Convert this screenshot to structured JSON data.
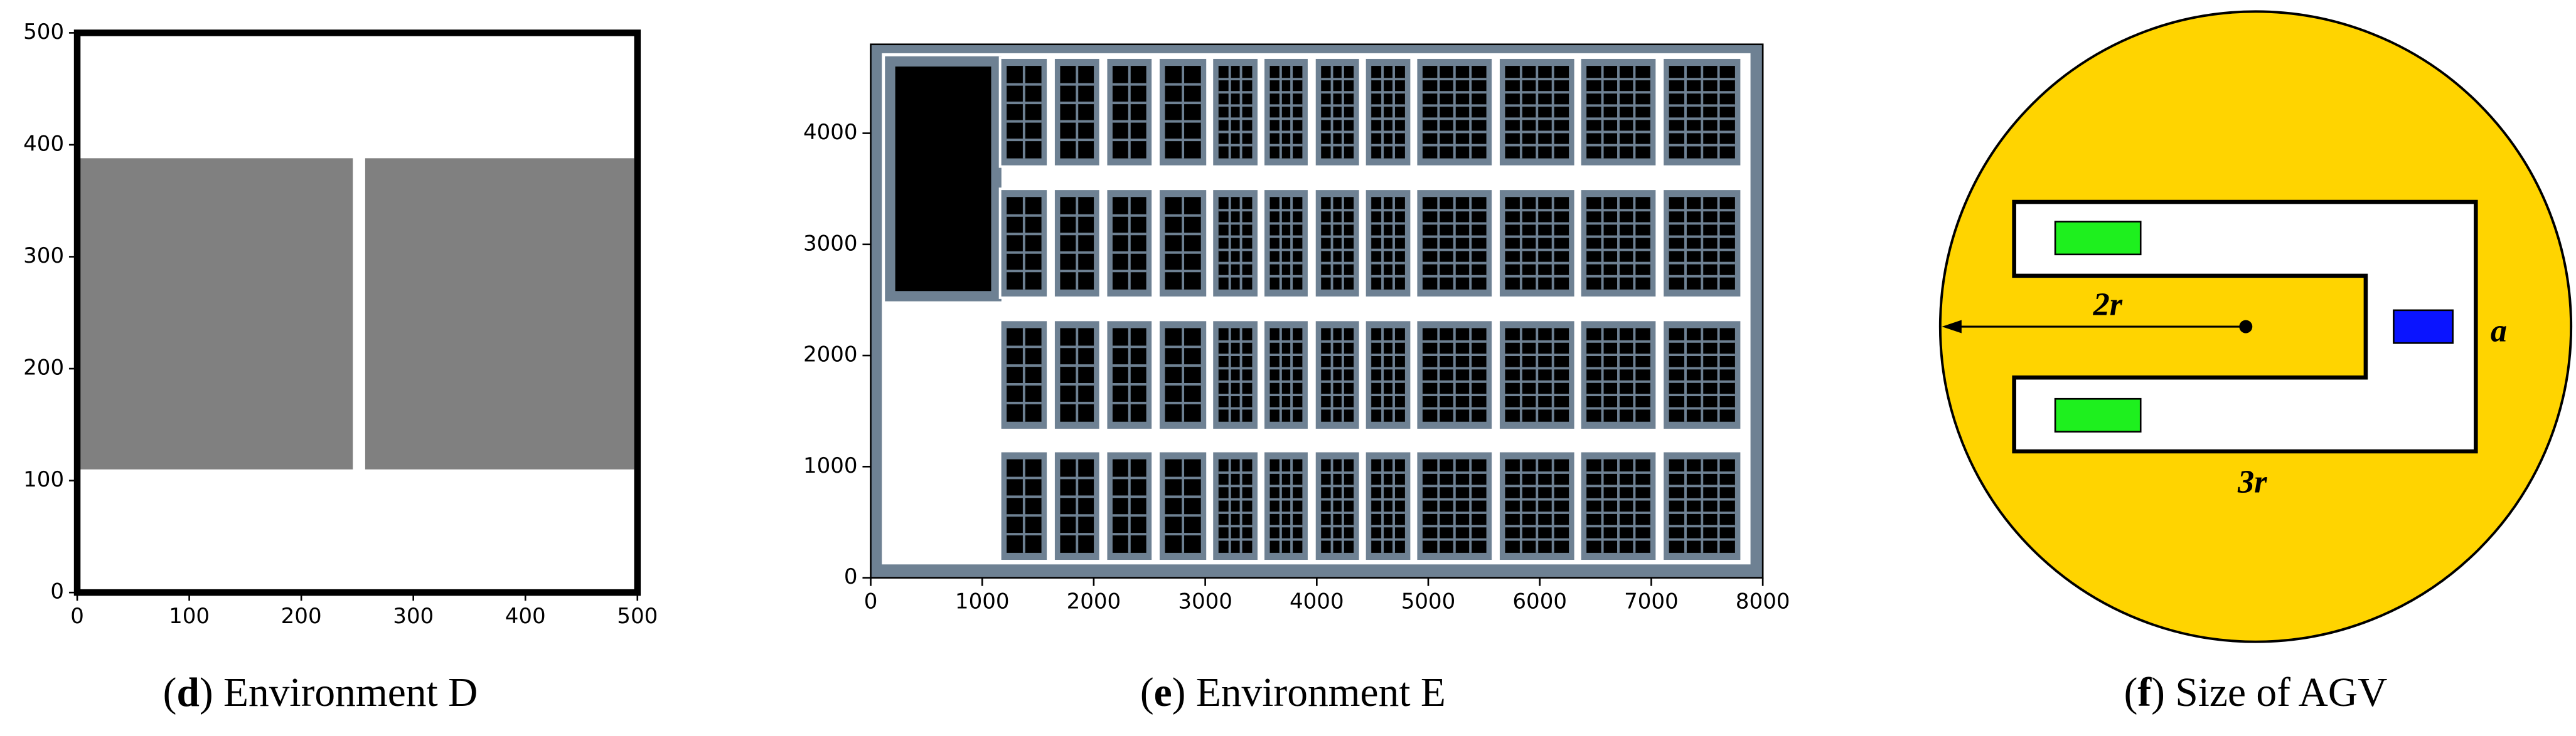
{
  "chart_data": [
    {
      "type": "map",
      "caption": [
        {
          "text": "(",
          "bold": false
        },
        {
          "text": "d",
          "bold": true
        },
        {
          "text": ") Environment D",
          "bold": false
        }
      ],
      "xlim": [
        0,
        500
      ],
      "ylim": [
        0,
        500
      ],
      "xticks": [
        0,
        100,
        200,
        300,
        400,
        500
      ],
      "yticks": [
        0,
        100,
        200,
        300,
        400,
        500
      ],
      "frame_bold": true,
      "obstacle_color": "#808080",
      "obstacles": [
        {
          "x": [
            0,
            246
          ],
          "y": [
            110,
            388
          ]
        },
        {
          "x": [
            257,
            497
          ],
          "y": [
            110,
            388
          ]
        }
      ]
    },
    {
      "type": "map",
      "caption": [
        {
          "text": "(",
          "bold": false
        },
        {
          "text": "e",
          "bold": true
        },
        {
          "text": ") Environment E",
          "bold": false
        }
      ],
      "xlim": [
        0,
        8000
      ],
      "ylim": [
        0,
        4800
      ],
      "xticks": [
        0,
        1000,
        2000,
        3000,
        4000,
        5000,
        6000,
        7000,
        8000
      ],
      "yticks": [
        0,
        1000,
        2000,
        3000,
        4000
      ],
      "frame_bold": false,
      "frame_color": "#6e8193",
      "obstacle_color": "#000000",
      "shelf_color": "#6e8193",
      "free_space": {
        "x": [
          100,
          7890
        ],
        "y": [
          120,
          4720
        ]
      },
      "obstacles": [
        {
          "x": [
            220,
            1080
          ],
          "y": [
            2580,
            4600
          ]
        }
      ],
      "shelf_columns": [
        [
          1160,
          1590
        ],
        [
          1640,
          2060
        ],
        [
          2110,
          2530
        ],
        [
          2580,
          3020
        ],
        [
          3060,
          3480
        ],
        [
          3520,
          3930
        ],
        [
          3980,
          4390
        ],
        [
          4430,
          4850
        ],
        [
          4890,
          5580
        ],
        [
          5630,
          6320
        ],
        [
          6360,
          7050
        ],
        [
          7100,
          7810
        ]
      ],
      "shelf_rows": [
        [
          3700,
          4680
        ],
        [
          2520,
          3500
        ],
        [
          1330,
          2320
        ],
        [
          150,
          1140
        ]
      ]
    }
  ],
  "agv_diagram": {
    "labels": {
      "radius": "2r",
      "width": "a",
      "length": "3r"
    },
    "caption": [
      {
        "text": "(",
        "bold": false
      },
      {
        "text": "f",
        "bold": true
      },
      {
        "text": ") Size of AGV",
        "bold": false
      }
    ]
  }
}
